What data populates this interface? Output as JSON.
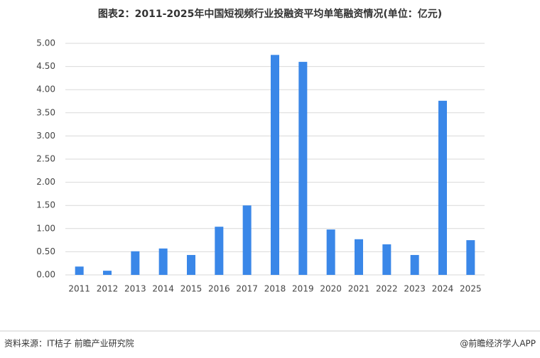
{
  "chart_data": {
    "type": "bar",
    "title": "图表2：2011-2025年中国短视频行业投融资平均单笔融资情况(单位：亿元)",
    "categories": [
      "2011",
      "2012",
      "2013",
      "2014",
      "2015",
      "2016",
      "2017",
      "2018",
      "2019",
      "2020",
      "2021",
      "2022",
      "2023",
      "2024",
      "2025"
    ],
    "values": [
      0.18,
      0.09,
      0.51,
      0.57,
      0.43,
      1.04,
      1.5,
      4.75,
      4.6,
      0.98,
      0.77,
      0.66,
      0.43,
      3.76,
      0.75
    ],
    "color": "#3a87e8",
    "ylim": [
      0,
      5
    ],
    "yticks": [
      {
        "value": 0,
        "label": "0.00"
      },
      {
        "value": 0.5,
        "label": "0.50"
      },
      {
        "value": 1,
        "label": "1.00"
      },
      {
        "value": 1.5,
        "label": "1.50"
      },
      {
        "value": 2,
        "label": "2.00"
      },
      {
        "value": 2.5,
        "label": "2.50"
      },
      {
        "value": 3,
        "label": "3.00"
      },
      {
        "value": 3.5,
        "label": "3.50"
      },
      {
        "value": 4,
        "label": "4.00"
      },
      {
        "value": 4.5,
        "label": "4.50"
      },
      {
        "value": 5,
        "label": "5.00"
      }
    ],
    "grid": true,
    "source": "资料来源：IT桔子 前瞻产业研究院",
    "credit": "@前瞻经济学人APP"
  }
}
